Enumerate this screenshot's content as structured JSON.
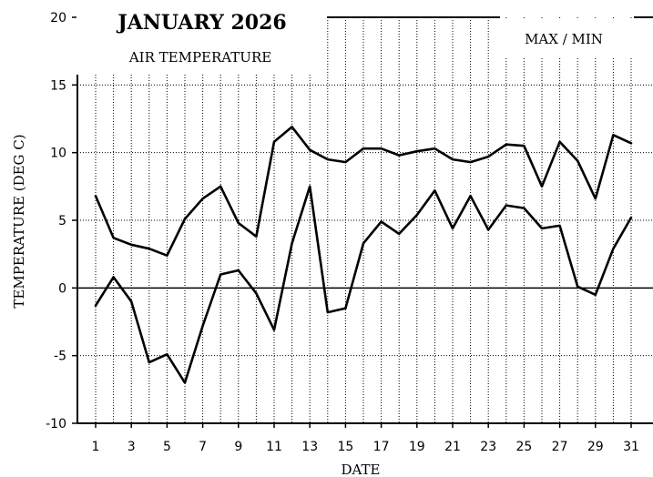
{
  "chart_data": {
    "type": "line",
    "title": "JANUARY 2026",
    "subtitle": "AIR TEMPERATURE",
    "legend_label": "MAX / MIN",
    "xlabel": "DATE",
    "ylabel": "TEMPERATURE (DEG C)",
    "xlim": [
      0,
      31
    ],
    "ylim": [
      -10,
      20
    ],
    "x_ticks": [
      1,
      3,
      5,
      7,
      9,
      11,
      13,
      15,
      17,
      19,
      21,
      23,
      25,
      27,
      29,
      31
    ],
    "y_ticks": [
      -10,
      -5,
      0,
      5,
      10,
      15,
      20
    ],
    "grid": true,
    "legend_position": "top-right",
    "x": [
      1,
      2,
      3,
      4,
      5,
      6,
      7,
      8,
      9,
      10,
      11,
      12,
      13,
      14,
      15,
      16,
      17,
      18,
      19,
      20,
      21,
      22,
      23,
      24,
      25,
      26,
      27,
      28,
      29,
      30,
      31
    ],
    "series": [
      {
        "values": [
          6.8,
          3.7,
          3.2,
          2.9,
          2.4,
          5.1,
          6.6,
          7.5,
          4.8,
          3.8,
          10.8,
          11.9,
          10.2,
          9.5,
          9.3,
          10.3,
          10.3,
          9.8,
          10.1,
          10.3,
          9.5,
          9.3,
          9.7,
          10.6,
          10.5,
          7.5,
          10.8,
          9.4,
          6.6,
          11.3,
          10.7
        ]
      },
      {
        "values": [
          -1.3,
          0.8,
          -1.0,
          -5.5,
          -4.9,
          -7.0,
          -2.8,
          1.0,
          1.3,
          -0.4,
          -3.1,
          3.3,
          7.5,
          -1.8,
          -1.5,
          3.3,
          4.9,
          4.0,
          5.4,
          7.2,
          4.4,
          6.8,
          4.3,
          6.1,
          5.9,
          4.4,
          4.6,
          0.1,
          -0.5,
          2.9,
          5.2
        ]
      }
    ],
    "colors": {
      "line": "#000000",
      "grid": "#000000",
      "background": "#ffffff"
    }
  }
}
